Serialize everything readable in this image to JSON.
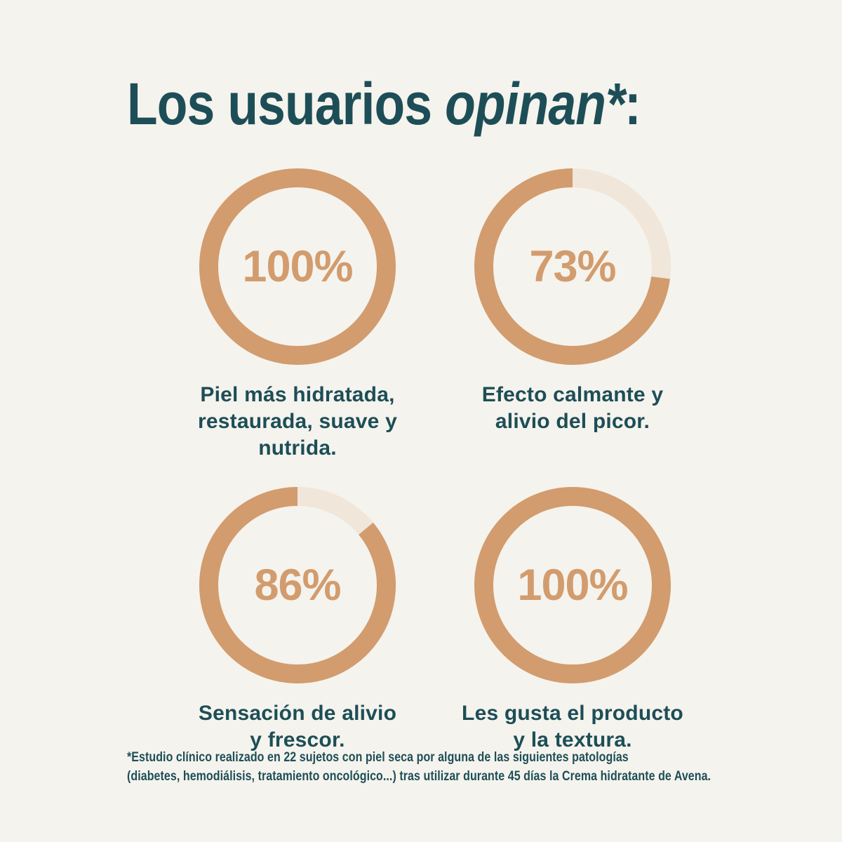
{
  "page": {
    "background_color": "#f5f3ed"
  },
  "title": {
    "regular": "Los usuarios ",
    "italic": "opinan*",
    "colon": ":",
    "color": "#1d4e57"
  },
  "chart_data": [
    {
      "type": "donut",
      "value": 100,
      "max": 100,
      "label": "100%",
      "caption": "Piel más hidratada,\nrestaurada, suave y nutrida.",
      "ring_color": "#d29c6e",
      "track_color": "#f0e6d9",
      "fill_direction": "counterclockwise-from-top"
    },
    {
      "type": "donut",
      "value": 73,
      "max": 100,
      "label": "73%",
      "caption": "Efecto calmante y\nalivio del picor.",
      "ring_color": "#d29c6e",
      "track_color": "#f0e6d9",
      "fill_direction": "counterclockwise-from-top"
    },
    {
      "type": "donut",
      "value": 86,
      "max": 100,
      "label": "86%",
      "caption": "Sensación de alivio\ny frescor.",
      "ring_color": "#d29c6e",
      "track_color": "#f0e6d9",
      "fill_direction": "counterclockwise-from-top"
    },
    {
      "type": "donut",
      "value": 100,
      "max": 100,
      "label": "100%",
      "caption": "Les gusta el producto\ny la textura.",
      "ring_color": "#d29c6e",
      "track_color": "#f0e6d9",
      "fill_direction": "counterclockwise-from-top"
    }
  ],
  "footnote": {
    "text": "*Estudio clínico realizado en 22 sujetos con piel seca por alguna de las siguientes patologías\n(diabetes, hemodiálisis, tratamiento oncológico...) tras utilizar durante 45 días la Crema hidratante de Avena.",
    "color": "#1d4e57"
  }
}
